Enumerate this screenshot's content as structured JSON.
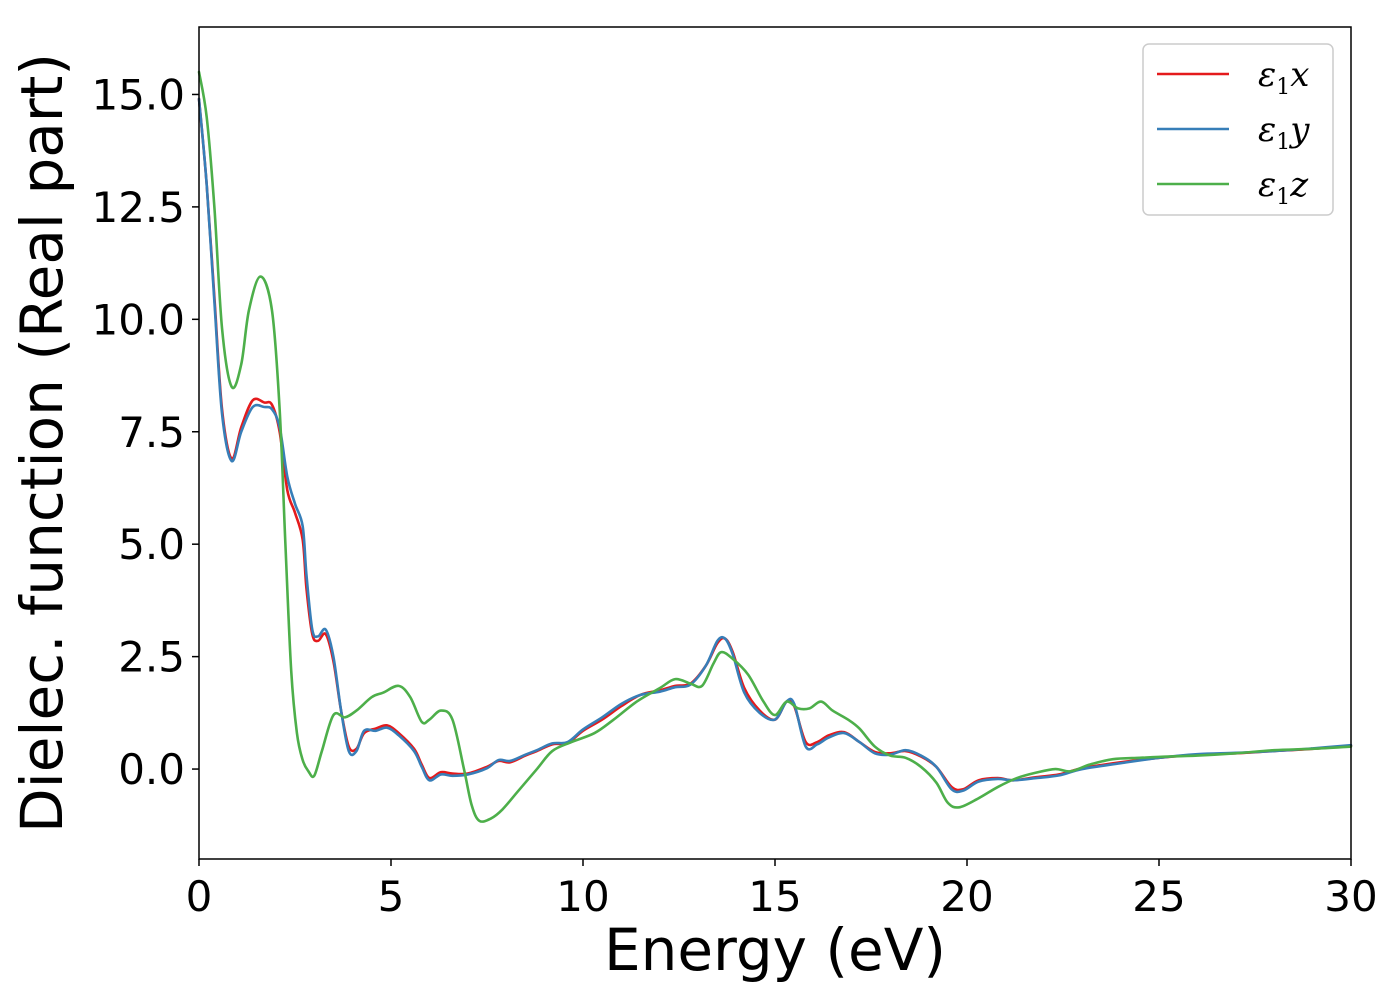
{
  "chart_data": {
    "type": "line",
    "xlabel": "Energy (eV)",
    "ylabel": "Dielec. function (Real part)",
    "xlim": [
      0,
      30
    ],
    "ylim": [
      -2.0,
      16.5
    ],
    "xticks": [
      0,
      5,
      10,
      15,
      20,
      25,
      30
    ],
    "xtick_labels": [
      "0",
      "5",
      "10",
      "15",
      "20",
      "25",
      "30"
    ],
    "yticks": [
      0.0,
      2.5,
      5.0,
      7.5,
      10.0,
      12.5,
      15.0
    ],
    "ytick_labels": [
      "0.0",
      "2.5",
      "5.0",
      "7.5",
      "10.0",
      "12.5",
      "15.0"
    ],
    "grid": false,
    "legend_position": "top-right",
    "series": [
      {
        "name": "ε1x",
        "name_base": "ε",
        "name_sub": "1",
        "name_suffix": "x",
        "color": "#e41a1c",
        "points": [
          [
            0,
            14.9
          ],
          [
            0.2,
            13.0
          ],
          [
            0.4,
            10.5
          ],
          [
            0.6,
            8.0
          ],
          [
            0.85,
            6.9
          ],
          [
            1.1,
            7.6
          ],
          [
            1.4,
            8.2
          ],
          [
            1.7,
            8.15
          ],
          [
            1.9,
            8.1
          ],
          [
            2.1,
            7.5
          ],
          [
            2.3,
            6.2
          ],
          [
            2.5,
            5.7
          ],
          [
            2.7,
            5.1
          ],
          [
            2.8,
            4.0
          ],
          [
            2.95,
            3.0
          ],
          [
            3.1,
            2.85
          ],
          [
            3.3,
            3.0
          ],
          [
            3.5,
            2.4
          ],
          [
            3.7,
            1.3
          ],
          [
            3.9,
            0.5
          ],
          [
            4.1,
            0.45
          ],
          [
            4.3,
            0.8
          ],
          [
            4.6,
            0.9
          ],
          [
            4.9,
            0.97
          ],
          [
            5.2,
            0.8
          ],
          [
            5.6,
            0.45
          ],
          [
            5.8,
            0.1
          ],
          [
            6.0,
            -0.2
          ],
          [
            6.3,
            -0.07
          ],
          [
            6.6,
            -0.1
          ],
          [
            7.0,
            -0.1
          ],
          [
            7.5,
            0.05
          ],
          [
            7.8,
            0.18
          ],
          [
            8.1,
            0.15
          ],
          [
            8.5,
            0.3
          ],
          [
            8.8,
            0.4
          ],
          [
            9.2,
            0.55
          ],
          [
            9.6,
            0.58
          ],
          [
            10.0,
            0.85
          ],
          [
            10.5,
            1.1
          ],
          [
            11.0,
            1.4
          ],
          [
            11.5,
            1.65
          ],
          [
            12.0,
            1.75
          ],
          [
            12.4,
            1.85
          ],
          [
            12.8,
            1.9
          ],
          [
            13.2,
            2.3
          ],
          [
            13.5,
            2.8
          ],
          [
            13.7,
            2.9
          ],
          [
            13.9,
            2.6
          ],
          [
            14.2,
            1.8
          ],
          [
            14.6,
            1.3
          ],
          [
            15.0,
            1.1
          ],
          [
            15.3,
            1.5
          ],
          [
            15.5,
            1.4
          ],
          [
            15.8,
            0.6
          ],
          [
            16.1,
            0.6
          ],
          [
            16.4,
            0.75
          ],
          [
            16.8,
            0.82
          ],
          [
            17.2,
            0.6
          ],
          [
            17.6,
            0.38
          ],
          [
            18.0,
            0.35
          ],
          [
            18.4,
            0.4
          ],
          [
            18.8,
            0.28
          ],
          [
            19.2,
            0.05
          ],
          [
            19.6,
            -0.4
          ],
          [
            19.9,
            -0.45
          ],
          [
            20.3,
            -0.25
          ],
          [
            20.8,
            -0.2
          ],
          [
            21.2,
            -0.25
          ],
          [
            21.8,
            -0.18
          ],
          [
            22.4,
            -0.12
          ],
          [
            23.0,
            0.02
          ],
          [
            24.0,
            0.15
          ],
          [
            25.0,
            0.25
          ],
          [
            26.0,
            0.32
          ],
          [
            27.0,
            0.35
          ],
          [
            28.0,
            0.4
          ],
          [
            29.0,
            0.45
          ],
          [
            30.0,
            0.52
          ]
        ]
      },
      {
        "name": "ε1y",
        "name_base": "ε",
        "name_sub": "1",
        "name_suffix": "y",
        "color": "#377eb8",
        "points": [
          [
            0,
            14.9
          ],
          [
            0.2,
            13.0
          ],
          [
            0.4,
            10.4
          ],
          [
            0.6,
            7.9
          ],
          [
            0.85,
            6.85
          ],
          [
            1.1,
            7.5
          ],
          [
            1.4,
            8.05
          ],
          [
            1.7,
            8.05
          ],
          [
            1.9,
            8.0
          ],
          [
            2.1,
            7.6
          ],
          [
            2.3,
            6.5
          ],
          [
            2.5,
            5.9
          ],
          [
            2.7,
            5.4
          ],
          [
            2.8,
            4.3
          ],
          [
            2.95,
            3.1
          ],
          [
            3.1,
            2.95
          ],
          [
            3.3,
            3.1
          ],
          [
            3.5,
            2.5
          ],
          [
            3.7,
            1.3
          ],
          [
            3.9,
            0.4
          ],
          [
            4.1,
            0.4
          ],
          [
            4.3,
            0.85
          ],
          [
            4.6,
            0.85
          ],
          [
            4.9,
            0.92
          ],
          [
            5.2,
            0.75
          ],
          [
            5.6,
            0.4
          ],
          [
            5.8,
            0.05
          ],
          [
            6.0,
            -0.25
          ],
          [
            6.3,
            -0.12
          ],
          [
            6.6,
            -0.15
          ],
          [
            7.0,
            -0.12
          ],
          [
            7.5,
            0.02
          ],
          [
            7.8,
            0.2
          ],
          [
            8.1,
            0.18
          ],
          [
            8.5,
            0.32
          ],
          [
            8.8,
            0.42
          ],
          [
            9.2,
            0.57
          ],
          [
            9.6,
            0.6
          ],
          [
            10.0,
            0.88
          ],
          [
            10.5,
            1.15
          ],
          [
            11.0,
            1.45
          ],
          [
            11.5,
            1.65
          ],
          [
            12.0,
            1.72
          ],
          [
            12.4,
            1.82
          ],
          [
            12.8,
            1.88
          ],
          [
            13.2,
            2.3
          ],
          [
            13.5,
            2.85
          ],
          [
            13.7,
            2.9
          ],
          [
            13.9,
            2.55
          ],
          [
            14.2,
            1.7
          ],
          [
            14.6,
            1.25
          ],
          [
            15.0,
            1.1
          ],
          [
            15.3,
            1.5
          ],
          [
            15.5,
            1.45
          ],
          [
            15.8,
            0.5
          ],
          [
            16.1,
            0.55
          ],
          [
            16.4,
            0.7
          ],
          [
            16.8,
            0.8
          ],
          [
            17.2,
            0.6
          ],
          [
            17.6,
            0.35
          ],
          [
            18.0,
            0.32
          ],
          [
            18.4,
            0.42
          ],
          [
            18.8,
            0.3
          ],
          [
            19.2,
            0.05
          ],
          [
            19.6,
            -0.45
          ],
          [
            19.9,
            -0.48
          ],
          [
            20.3,
            -0.28
          ],
          [
            20.8,
            -0.22
          ],
          [
            21.2,
            -0.25
          ],
          [
            21.8,
            -0.2
          ],
          [
            22.4,
            -0.14
          ],
          [
            23.0,
            0.0
          ],
          [
            24.0,
            0.13
          ],
          [
            25.0,
            0.25
          ],
          [
            26.0,
            0.33
          ],
          [
            27.0,
            0.36
          ],
          [
            28.0,
            0.4
          ],
          [
            29.0,
            0.46
          ],
          [
            30.0,
            0.53
          ]
        ]
      },
      {
        "name": "ε1z",
        "name_base": "ε",
        "name_sub": "1",
        "name_suffix": "z",
        "color": "#4daf4a",
        "points": [
          [
            0,
            15.5
          ],
          [
            0.2,
            14.5
          ],
          [
            0.4,
            12.5
          ],
          [
            0.6,
            9.8
          ],
          [
            0.85,
            8.5
          ],
          [
            1.1,
            9.0
          ],
          [
            1.3,
            10.2
          ],
          [
            1.6,
            10.95
          ],
          [
            1.9,
            10.2
          ],
          [
            2.1,
            8.0
          ],
          [
            2.25,
            5.0
          ],
          [
            2.4,
            2.2
          ],
          [
            2.55,
            0.8
          ],
          [
            2.7,
            0.2
          ],
          [
            2.85,
            -0.05
          ],
          [
            3.0,
            -0.15
          ],
          [
            3.2,
            0.4
          ],
          [
            3.5,
            1.2
          ],
          [
            3.8,
            1.15
          ],
          [
            4.1,
            1.3
          ],
          [
            4.5,
            1.6
          ],
          [
            4.8,
            1.7
          ],
          [
            5.2,
            1.85
          ],
          [
            5.5,
            1.6
          ],
          [
            5.8,
            1.05
          ],
          [
            6.0,
            1.1
          ],
          [
            6.3,
            1.3
          ],
          [
            6.6,
            1.1
          ],
          [
            6.9,
            0.0
          ],
          [
            7.1,
            -0.8
          ],
          [
            7.3,
            -1.15
          ],
          [
            7.6,
            -1.1
          ],
          [
            7.9,
            -0.9
          ],
          [
            8.3,
            -0.5
          ],
          [
            8.8,
            0.0
          ],
          [
            9.2,
            0.4
          ],
          [
            9.7,
            0.6
          ],
          [
            10.3,
            0.8
          ],
          [
            10.8,
            1.1
          ],
          [
            11.4,
            1.5
          ],
          [
            12.0,
            1.8
          ],
          [
            12.4,
            2.0
          ],
          [
            12.8,
            1.9
          ],
          [
            13.1,
            1.85
          ],
          [
            13.4,
            2.35
          ],
          [
            13.6,
            2.6
          ],
          [
            13.9,
            2.45
          ],
          [
            14.3,
            2.1
          ],
          [
            14.7,
            1.5
          ],
          [
            15.0,
            1.2
          ],
          [
            15.3,
            1.5
          ],
          [
            15.6,
            1.35
          ],
          [
            15.9,
            1.35
          ],
          [
            16.2,
            1.5
          ],
          [
            16.5,
            1.3
          ],
          [
            16.9,
            1.1
          ],
          [
            17.2,
            0.9
          ],
          [
            17.6,
            0.5
          ],
          [
            18.0,
            0.3
          ],
          [
            18.4,
            0.25
          ],
          [
            18.8,
            0.05
          ],
          [
            19.2,
            -0.3
          ],
          [
            19.5,
            -0.75
          ],
          [
            19.8,
            -0.85
          ],
          [
            20.3,
            -0.65
          ],
          [
            20.8,
            -0.4
          ],
          [
            21.3,
            -0.2
          ],
          [
            21.8,
            -0.08
          ],
          [
            22.3,
            0.0
          ],
          [
            22.7,
            -0.05
          ],
          [
            23.2,
            0.1
          ],
          [
            23.8,
            0.22
          ],
          [
            24.5,
            0.25
          ],
          [
            25.0,
            0.27
          ],
          [
            26.0,
            0.3
          ],
          [
            27.0,
            0.35
          ],
          [
            28.0,
            0.42
          ],
          [
            29.0,
            0.45
          ],
          [
            30.0,
            0.5
          ]
        ]
      }
    ]
  }
}
